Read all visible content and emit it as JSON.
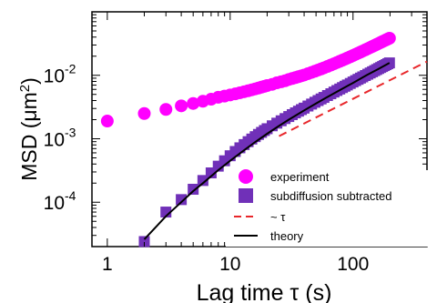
{
  "chart_data": {
    "type": "scatter",
    "xlabel": "Lag time τ (s)",
    "ylabel": "MSD (μm²)",
    "ylabel_parts": {
      "main": "MSD (μm",
      "sup": "2",
      "close": ")"
    },
    "x_scale": "log",
    "y_scale": "log",
    "xlim": [
      0.75,
      400
    ],
    "ylim": [
      2e-05,
      0.1
    ],
    "x_ticks": [
      {
        "value": 1,
        "label": "1"
      },
      {
        "value": 10,
        "label": "10"
      },
      {
        "value": 100,
        "label": "100"
      }
    ],
    "y_ticks": [
      {
        "value": 0.0001,
        "base": "10",
        "exp": "-4"
      },
      {
        "value": 0.001,
        "base": "10",
        "exp": "-3"
      },
      {
        "value": 0.01,
        "base": "10",
        "exp": "-2"
      }
    ],
    "grid": false,
    "legend_position": "bottom-right",
    "series": [
      {
        "name": "experiment",
        "kind": "points",
        "marker": "circle",
        "color": "#ff00ff",
        "x": [
          1,
          2,
          3,
          4,
          5,
          6,
          7,
          8,
          9,
          10,
          11,
          12,
          13,
          14,
          15,
          16,
          17,
          18,
          19,
          20,
          22,
          24,
          26,
          28,
          30,
          32,
          34,
          36,
          38,
          40,
          43,
          46,
          49,
          52,
          55,
          58,
          62,
          66,
          70,
          74,
          78,
          82,
          86,
          90,
          95,
          100,
          105,
          110,
          115,
          120,
          126,
          132,
          138,
          144,
          150,
          156,
          162,
          168,
          174,
          180,
          186,
          192,
          198
        ],
        "y": [
          0.0019,
          0.0025,
          0.0029,
          0.0033,
          0.0036,
          0.0039,
          0.0042,
          0.0045,
          0.0047,
          0.0049,
          0.0051,
          0.0053,
          0.0055,
          0.0057,
          0.0059,
          0.0061,
          0.0063,
          0.0065,
          0.0067,
          0.0069,
          0.0072,
          0.0076,
          0.0079,
          0.0082,
          0.0086,
          0.0089,
          0.0092,
          0.0095,
          0.0098,
          0.0101,
          0.0106,
          0.0111,
          0.0116,
          0.0121,
          0.0126,
          0.0131,
          0.0138,
          0.0145,
          0.0152,
          0.0159,
          0.0166,
          0.0173,
          0.018,
          0.0187,
          0.0196,
          0.0205,
          0.0214,
          0.0223,
          0.0232,
          0.0241,
          0.0252,
          0.0263,
          0.0274,
          0.0285,
          0.0296,
          0.0307,
          0.0318,
          0.0329,
          0.034,
          0.0351,
          0.0362,
          0.0373,
          0.0384
        ]
      },
      {
        "name": "subdiffusion subtracted",
        "kind": "points",
        "marker": "square",
        "color": "#7030b8",
        "x": [
          2,
          3,
          4,
          5,
          6,
          7,
          8,
          9,
          10,
          11,
          12,
          13,
          14,
          15,
          16,
          17,
          18,
          19,
          20,
          22,
          24,
          26,
          28,
          30,
          32,
          34,
          36,
          38,
          40,
          43,
          46,
          49,
          52,
          55,
          58,
          62,
          66,
          70,
          74,
          78,
          82,
          86,
          90,
          95,
          100,
          105,
          110,
          115,
          120,
          126,
          132,
          138,
          144,
          150,
          156,
          162,
          168,
          174,
          180,
          186,
          192,
          198
        ],
        "y": [
          2.4e-05,
          7e-05,
          0.00011,
          0.00016,
          0.00022,
          0.00029,
          0.00037,
          0.00045,
          0.00054,
          0.00063,
          0.00072,
          0.00081,
          0.0009,
          0.00099,
          0.00108,
          0.00117,
          0.00126,
          0.00135,
          0.00144,
          0.0016,
          0.00176,
          0.00192,
          0.00208,
          0.00224,
          0.0024,
          0.00256,
          0.00272,
          0.00288,
          0.00304,
          0.00328,
          0.00352,
          0.00376,
          0.004,
          0.00424,
          0.00448,
          0.0048,
          0.00512,
          0.00544,
          0.00576,
          0.00608,
          0.0064,
          0.00672,
          0.00704,
          0.00744,
          0.00784,
          0.00824,
          0.00864,
          0.00904,
          0.00944,
          0.00992,
          0.0104,
          0.01088,
          0.01136,
          0.01184,
          0.01232,
          0.0128,
          0.01328,
          0.01376,
          0.01424,
          0.01472,
          0.0152,
          0.01568
        ]
      },
      {
        "name": "~ τ",
        "kind": "line",
        "dash": true,
        "color": "#e8262a",
        "x": [
          25,
          400
        ],
        "y": [
          0.0011,
          0.0165
        ]
      },
      {
        "name": "theory",
        "kind": "line",
        "dash": false,
        "color": "#000000",
        "x": [
          2,
          3,
          4,
          5,
          6,
          8,
          10,
          13,
          16,
          20,
          25,
          30,
          40,
          50,
          60,
          80,
          100,
          130,
          160,
          198
        ],
        "y": [
          2.6e-05,
          6e-05,
          0.0001,
          0.00015,
          0.0002,
          0.00032,
          0.00045,
          0.00066,
          0.00089,
          0.0012,
          0.0016,
          0.002,
          0.0028,
          0.0036,
          0.0044,
          0.006,
          0.0076,
          0.0101,
          0.0125,
          0.0157
        ]
      }
    ]
  }
}
